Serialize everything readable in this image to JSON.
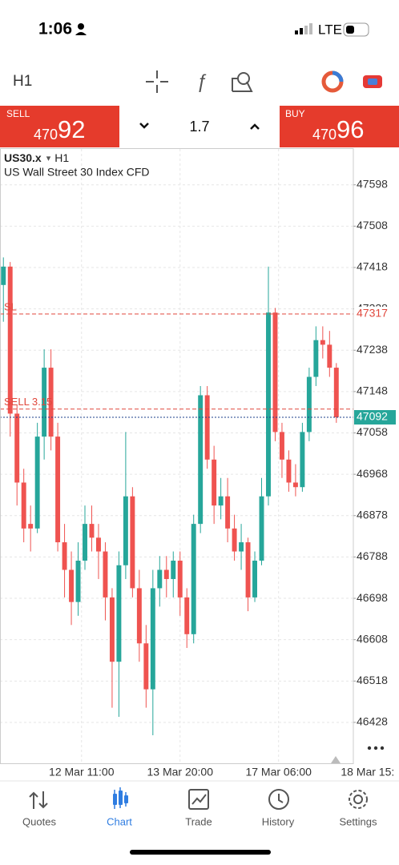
{
  "status_bar": {
    "time": "1:06",
    "network": "LTE"
  },
  "toolbar": {
    "timeframe": "H1"
  },
  "trade_bar": {
    "sell_label": "SELL",
    "sell_price_small": "470",
    "sell_price_large": "92",
    "volume": "1.7",
    "buy_label": "BUY",
    "buy_price_small": "470",
    "buy_price_large": "96"
  },
  "chart_data": {
    "type": "candlestick",
    "symbol": "US30.x",
    "timeframe": "H1",
    "description": "US Wall Street 30 Index CFD",
    "ylim": [
      46339,
      47676
    ],
    "yticks": [
      47598,
      47508,
      47418,
      47328,
      47238,
      47148,
      47058,
      46968,
      46878,
      46788,
      46698,
      46608,
      46518,
      46428
    ],
    "xlim": [
      -0.5,
      51.5
    ],
    "xticks": [
      {
        "value": 11.5,
        "label": "12 Mar 11:00"
      },
      {
        "value": 26,
        "label": "13 Mar 20:00"
      },
      {
        "value": 40.5,
        "label": "17 Mar 06:00"
      },
      {
        "value": 53.6,
        "label": "18 Mar 15:"
      }
    ],
    "grid": true,
    "up_color": "#26a69a",
    "down_color": "#ef5350",
    "open": [
      47380,
      47420,
      47100,
      46950,
      46860,
      46850,
      47050,
      47200,
      47050,
      46820,
      46760,
      46690,
      46780,
      46860,
      46830,
      46800,
      46700,
      46560,
      46770,
      46920,
      46720,
      46600,
      46500,
      46720,
      46760,
      46740,
      46780,
      46700,
      46620,
      46860,
      47140,
      47000,
      46900,
      46920,
      46850,
      46800,
      46820,
      46700,
      46780,
      46920,
      47320,
      47060,
      47000,
      46950,
      46940,
      47060,
      47180,
      47260,
      47250,
      47200
    ],
    "high": [
      47440,
      47430,
      47120,
      46980,
      46900,
      47080,
      47240,
      47240,
      47080,
      46860,
      46800,
      46820,
      46900,
      46900,
      46860,
      46820,
      46720,
      46800,
      47060,
      46940,
      46760,
      46640,
      46760,
      46790,
      46790,
      46800,
      46800,
      46720,
      46880,
      47160,
      47160,
      47030,
      46960,
      46960,
      46880,
      46860,
      46830,
      46800,
      46960,
      47420,
      47330,
      47080,
      47020,
      46990,
      47080,
      47200,
      47290,
      47290,
      47280,
      47210
    ],
    "low": [
      47300,
      47050,
      46900,
      46820,
      46800,
      46840,
      47000,
      47020,
      46800,
      46700,
      46640,
      46660,
      46760,
      46800,
      46740,
      46650,
      46460,
      46440,
      46740,
      46700,
      46560,
      46460,
      46400,
      46680,
      46700,
      46700,
      46660,
      46590,
      46600,
      46840,
      46980,
      46860,
      46870,
      46820,
      46780,
      46760,
      46670,
      46690,
      46770,
      46900,
      47040,
      46960,
      46930,
      46920,
      46930,
      47040,
      47160,
      47220,
      47180,
      47080
    ],
    "close": [
      47420,
      47100,
      46950,
      46850,
      46850,
      47050,
      47200,
      47050,
      46820,
      46760,
      46690,
      46780,
      46860,
      46830,
      46800,
      46700,
      46560,
      46770,
      46920,
      46720,
      46600,
      46500,
      46720,
      46760,
      46740,
      46780,
      46700,
      46620,
      46860,
      47140,
      47000,
      46900,
      46920,
      46850,
      46800,
      46820,
      46700,
      46780,
      46920,
      47320,
      47060,
      47000,
      46950,
      46940,
      47060,
      47180,
      47260,
      47250,
      47200,
      47092
    ],
    "levels": [
      {
        "label": "SL",
        "value": 47317,
        "color": "#e0473c"
      },
      {
        "label": "SELL 3.15",
        "value": 47110,
        "color": "#e0473c"
      }
    ],
    "bid": {
      "value": 47092,
      "color": "#26a69a"
    }
  },
  "nav": {
    "tabs": [
      "Quotes",
      "Chart",
      "Trade",
      "History",
      "Settings"
    ],
    "active_tab": 1
  }
}
